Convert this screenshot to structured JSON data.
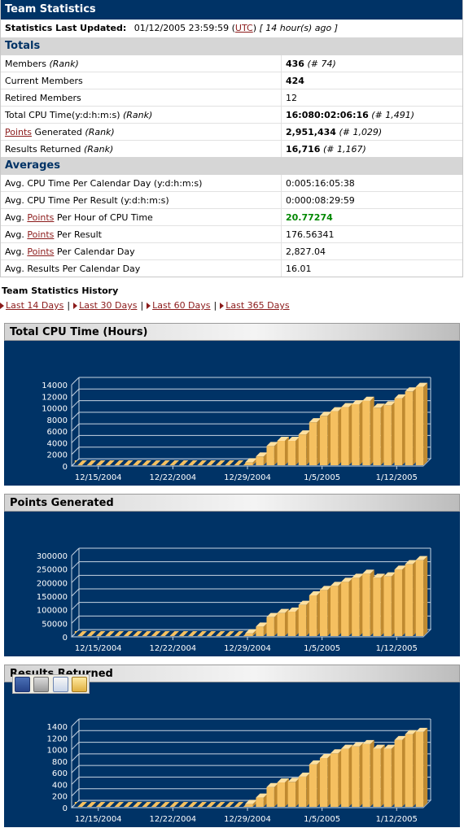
{
  "header": {
    "title": "Team Statistics",
    "updated_label": "Statistics Last Updated:",
    "updated_value": "01/12/2005 23:59:59",
    "utc_open": "(",
    "utc_link": "UTC",
    "utc_close": ")",
    "ago": "[ 14 hour(s) ago ]"
  },
  "totals": {
    "heading": "Totals",
    "members_label": "Members",
    "members_rank_note": "(Rank)",
    "members_value": "436",
    "members_rank": "(# 74)",
    "current_members_label": "Current Members",
    "current_members_value": "424",
    "retired_members_label": "Retired Members",
    "retired_members_value": "12",
    "cpu_label": "Total CPU Time(y:d:h:m:s)",
    "cpu_rank_note": "(Rank)",
    "cpu_value": "16:080:02:06:16",
    "cpu_rank": "(# 1,491)",
    "points_link": "Points",
    "points_label_rest": "Generated",
    "points_rank_note": "(Rank)",
    "points_value": "2,951,434",
    "points_rank": "(# 1,029)",
    "results_label": "Results Returned",
    "results_rank_note": "(Rank)",
    "results_value": "16,716",
    "results_rank": "(# 1,167)"
  },
  "averages": {
    "heading": "Averages",
    "r1_label": "Avg. CPU Time Per Calendar Day (y:d:h:m:s)",
    "r1_value": "0:005:16:05:38",
    "r2_label": "Avg. CPU Time Per Result (y:d:h:m:s)",
    "r2_value": "0:000:08:29:59",
    "r3_pre": "Avg.",
    "r3_link": "Points",
    "r3_post": "Per Hour of CPU Time",
    "r3_value": "20.77274",
    "r4_pre": "Avg.",
    "r4_link": "Points",
    "r4_post": "Per Result",
    "r4_value": "176.56341",
    "r5_pre": "Avg.",
    "r5_link": "Points",
    "r5_post": "Per Calendar Day",
    "r5_value": "2,827.04",
    "r6_label": "Avg. Results Per Calendar Day",
    "r6_value": "16.01"
  },
  "history": {
    "title": "Team Statistics History",
    "links": [
      "Last 14 Days",
      "Last 30 Days",
      "Last 60 Days",
      "Last 365 Days"
    ],
    "separator": "|"
  },
  "colors": {
    "navy": "#003366",
    "bar_front": "#f5c060",
    "bar_top": "#ffe0a0",
    "bar_side": "#c08a30",
    "link": "#8b1a1a",
    "highlight_green": "#008800"
  },
  "chart_data": [
    {
      "type": "bar",
      "title": "Total CPU Time (Hours)",
      "x_tick_labels": [
        "12/15/2004",
        "12/22/2004",
        "12/29/2004",
        "1/5/2005",
        "1/12/2005"
      ],
      "x_tick_positions": [
        2,
        9,
        16,
        23,
        30
      ],
      "ylim": [
        0,
        14000
      ],
      "yticks": [
        0,
        2000,
        4000,
        6000,
        8000,
        10000,
        12000,
        14000
      ],
      "values": [
        0,
        0,
        0,
        0,
        0,
        0,
        0,
        0,
        0,
        0,
        0,
        0,
        0,
        0,
        0,
        0,
        500,
        1500,
        3300,
        4200,
        4200,
        5300,
        7400,
        8500,
        9300,
        10000,
        10500,
        11100,
        9900,
        10300,
        11500,
        12700,
        13500
      ]
    },
    {
      "type": "bar",
      "title": "Points Generated",
      "x_tick_labels": [
        "12/15/2004",
        "12/22/2004",
        "12/29/2004",
        "1/5/2005",
        "1/12/2005"
      ],
      "x_tick_positions": [
        2,
        9,
        16,
        23,
        30
      ],
      "ylim": [
        0,
        300000
      ],
      "yticks": [
        0,
        50000,
        100000,
        150000,
        200000,
        250000,
        300000
      ],
      "values": [
        0,
        0,
        0,
        0,
        0,
        0,
        0,
        0,
        0,
        0,
        0,
        0,
        0,
        0,
        0,
        0,
        10000,
        35000,
        70000,
        85000,
        90000,
        115000,
        150000,
        170000,
        185000,
        200000,
        215000,
        230000,
        215000,
        220000,
        245000,
        265000,
        280000
      ]
    },
    {
      "type": "bar",
      "title": "Results Returned",
      "x_tick_labels": [
        "12/15/2004",
        "12/22/2004",
        "12/29/2004",
        "1/5/2005",
        "1/12/2005"
      ],
      "x_tick_positions": [
        2,
        9,
        16,
        23,
        30
      ],
      "ylim": [
        0,
        1400
      ],
      "yticks": [
        0,
        200,
        400,
        600,
        800,
        1000,
        1200,
        1400
      ],
      "values": [
        0,
        0,
        0,
        0,
        0,
        0,
        0,
        0,
        0,
        0,
        0,
        0,
        0,
        0,
        0,
        0,
        50,
        160,
        340,
        420,
        430,
        520,
        730,
        840,
        920,
        1000,
        1040,
        1080,
        1000,
        1000,
        1150,
        1250,
        1290
      ]
    }
  ]
}
